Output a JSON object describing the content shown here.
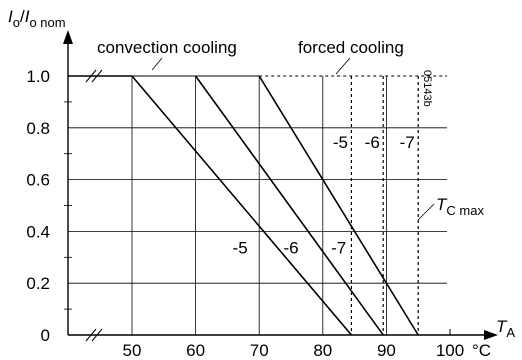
{
  "chart_data": {
    "type": "line",
    "y_axis_label": {
      "main": "I",
      "sub1": "o",
      "slash": "/",
      "main2": "I",
      "sub2": "o nom"
    },
    "x_axis_label": {
      "main": "T",
      "sub": "A"
    },
    "x_unit": "°C",
    "x_ticks": [
      50,
      60,
      70,
      80,
      90,
      100
    ],
    "y_ticks": [
      {
        "v": 0,
        "label": "0"
      },
      {
        "v": 0.2,
        "label": "0.2"
      },
      {
        "v": 0.4,
        "label": "0.4"
      },
      {
        "v": 0.6,
        "label": "0.6"
      },
      {
        "v": 0.8,
        "label": "0.8"
      },
      {
        "v": 1.0,
        "label": "1.0"
      }
    ],
    "xlim": [
      50,
      100
    ],
    "ylim": [
      0,
      1.0
    ],
    "grid": true,
    "region_labels": {
      "convection": "convection cooling",
      "forced": "forced cooling"
    },
    "tc_max_label": {
      "main": "T",
      "sub": "C max"
    },
    "figure_code": "05143b",
    "series": [
      {
        "label": "-5",
        "points": [
          [
            40,
            1.0
          ],
          [
            50,
            1.0
          ],
          [
            84.5,
            0
          ]
        ]
      },
      {
        "label": "-6",
        "points": [
          [
            60,
            1.0
          ],
          [
            89.5,
            0
          ]
        ]
      },
      {
        "label": "-7",
        "points": [
          [
            70,
            1.0
          ],
          [
            95,
            0
          ]
        ]
      }
    ],
    "series_labels_convection": [
      {
        "text": "-5",
        "x": 67,
        "y": 0.4
      },
      {
        "text": "-6",
        "x": 75,
        "y": 0.4
      },
      {
        "text": "-7",
        "x": 82.5,
        "y": 0.4
      }
    ],
    "tc_max_lines": [
      {
        "label": "-5",
        "x": 84.5
      },
      {
        "label": "-6",
        "x": 89.5
      },
      {
        "label": "-7",
        "x": 95
      }
    ]
  }
}
